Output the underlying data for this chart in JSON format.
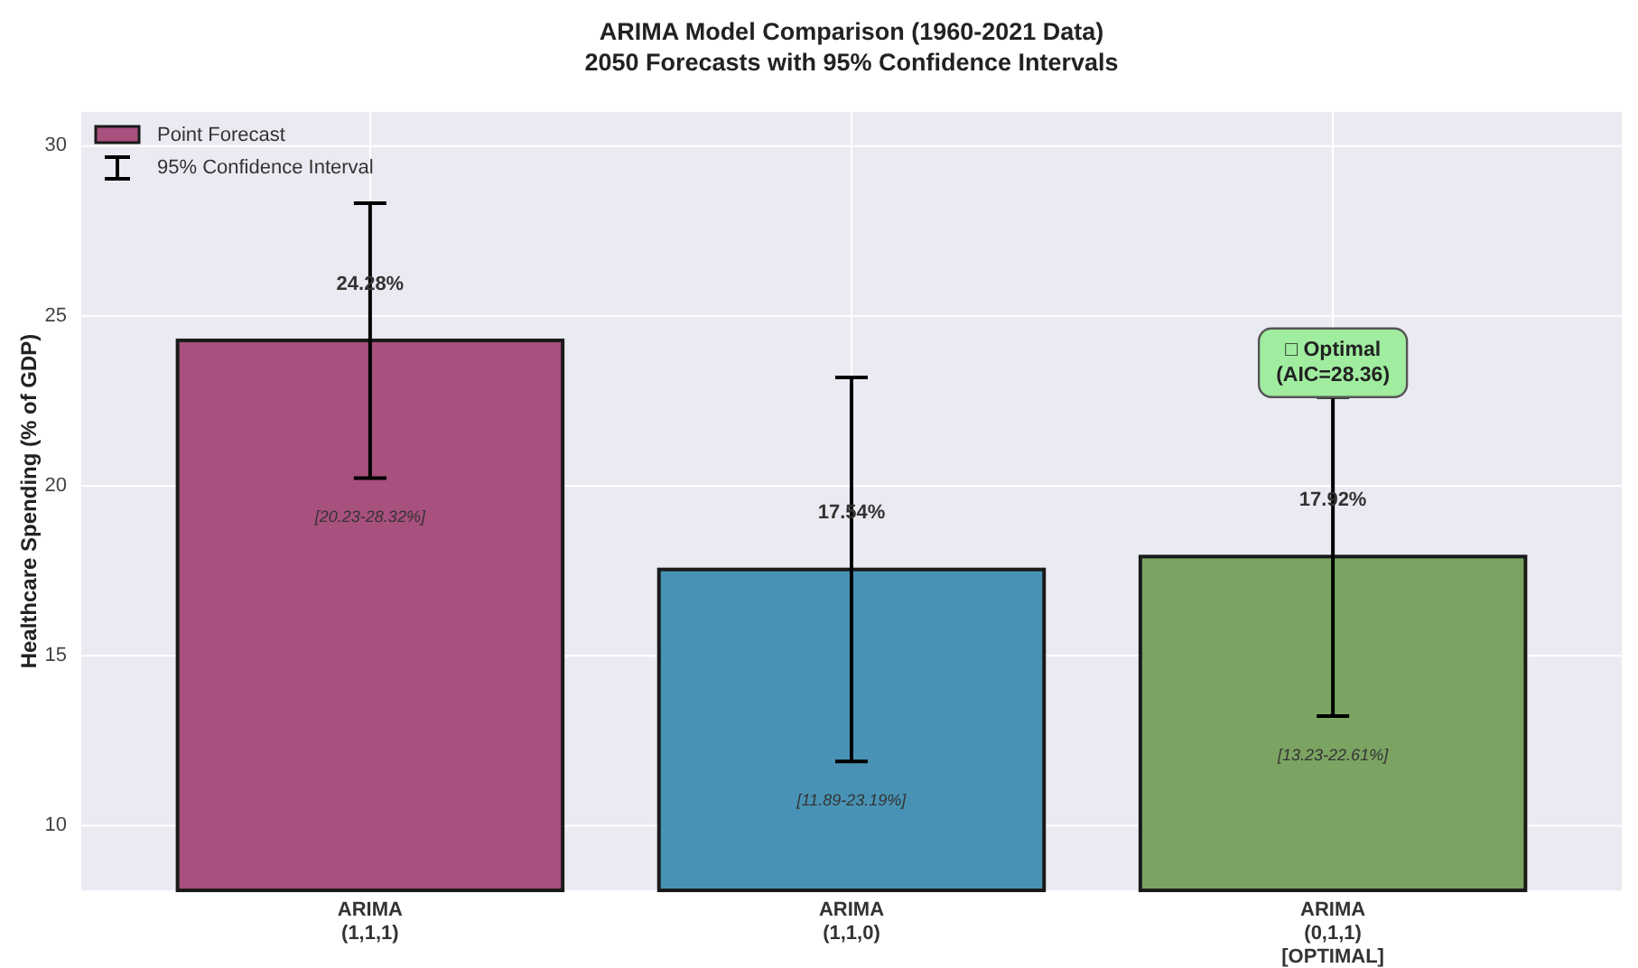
{
  "chart_data": {
    "type": "bar",
    "title": "ARIMA Model Comparison (1960-2021 Data)",
    "subtitle": "2050 Forecasts with 95% Confidence Intervals",
    "ylabel": "Healthcare Spending (% of GDP)",
    "categories": [
      "ARIMA\n(1,1,1)",
      "ARIMA\n(1,1,0)",
      "ARIMA\n(0,1,1)\n[OPTIMAL]"
    ],
    "series": [
      {
        "name": "Point Forecast",
        "colors": [
          "#a8507e",
          "#4893b5",
          "#7ba462"
        ],
        "values": [
          24.28,
          17.54,
          17.92
        ],
        "errors": [
          [
            20.23,
            28.32
          ],
          [
            11.89,
            23.19
          ],
          [
            13.23,
            22.61
          ]
        ],
        "value_labels": [
          "24.28%",
          "17.54%",
          "17.92%"
        ]
      }
    ],
    "ylim": [
      8.1,
      31
    ],
    "yticks": [
      10,
      15,
      20,
      25,
      30
    ],
    "grid": true,
    "legend": "top left",
    "annotations": [
      "95% Confidence Interval",
      "[20.23-28.32%]",
      "[11.89-23.19%]",
      "[13.23-22.61%]",
      "□ Optimal\n(AIC=28.36)"
    ]
  }
}
